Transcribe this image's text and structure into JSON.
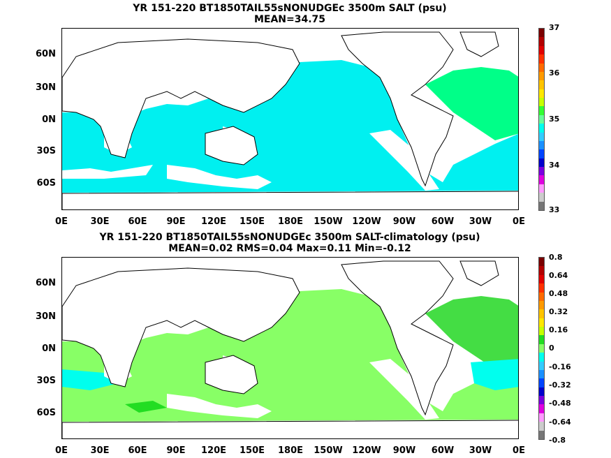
{
  "panels": [
    {
      "title_line1": "YR 151-220 BT1850TAIL55sNONUDGEc 3500m SALT (psu)",
      "title_line2": "MEAN=34.75",
      "colorbar_labels": [
        "37",
        "36",
        "35",
        "34",
        "33"
      ],
      "colorbar_colors": [
        "#7a0000",
        "#b20000",
        "#e00000",
        "#ff3000",
        "#ff6a00",
        "#ff9a00",
        "#ffc400",
        "#ffe800",
        "#c8ff00",
        "#33ff33",
        "#66ff99",
        "#00ffee",
        "#33ccff",
        "#1a90ff",
        "#0044ff",
        "#0000cc",
        "#7a00e0",
        "#e000e0",
        "#ff99ff",
        "#cccccc",
        "#777777"
      ],
      "field_color": "#00f0f0",
      "atlantic_color": "#00ff88"
    },
    {
      "title_line1": "YR 151-220 BT1850TAIL55sNONUDGEc 3500m SALT-climatology (psu)",
      "title_line2": "MEAN=0.02   RMS=0.04   Max=0.11   Min=-0.12",
      "colorbar_labels": [
        "0.8",
        "0.64",
        "0.48",
        "0.32",
        "0.16",
        "0",
        "-0.16",
        "-0.32",
        "-0.48",
        "-0.64",
        "-0.8"
      ],
      "colorbar_colors": [
        "#7a0000",
        "#b20000",
        "#e00000",
        "#ff3000",
        "#ff6a00",
        "#ff9a00",
        "#ffc400",
        "#ffe800",
        "#c8ff00",
        "#22dd22",
        "#88ff66",
        "#00ffee",
        "#33ccff",
        "#1a90ff",
        "#0044ff",
        "#0000cc",
        "#7a00e0",
        "#e000e0",
        "#ff99ff",
        "#cccccc",
        "#777777"
      ],
      "field_color": "#88ff66",
      "atlantic_color": "#44dd44"
    }
  ],
  "lat_labels": [
    "60N",
    "30N",
    "0N",
    "30S",
    "60S"
  ],
  "lon_labels": [
    "0E",
    "30E",
    "60E",
    "90E",
    "120E",
    "150E",
    "180E",
    "150W",
    "120W",
    "90W",
    "60W",
    "30W",
    "0E"
  ]
}
